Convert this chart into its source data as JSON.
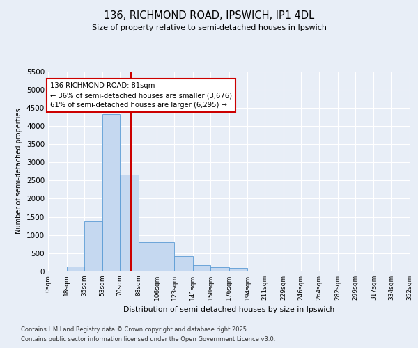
{
  "title_line1": "136, RICHMOND ROAD, IPSWICH, IP1 4DL",
  "title_line2": "Size of property relative to semi-detached houses in Ipswich",
  "xlabel": "Distribution of semi-detached houses by size in Ipswich",
  "ylabel": "Number of semi-detached properties",
  "bins": [
    0,
    18,
    35,
    53,
    70,
    88,
    106,
    123,
    141,
    158,
    176,
    194,
    211,
    229,
    246,
    264,
    282,
    299,
    317,
    334,
    352
  ],
  "bin_labels": [
    "0sqm",
    "18sqm",
    "35sqm",
    "53sqm",
    "70sqm",
    "88sqm",
    "106sqm",
    "123sqm",
    "141sqm",
    "158sqm",
    "176sqm",
    "194sqm",
    "211sqm",
    "229sqm",
    "246sqm",
    "264sqm",
    "282sqm",
    "299sqm",
    "317sqm",
    "334sqm",
    "352sqm"
  ],
  "counts": [
    10,
    130,
    1370,
    4320,
    2660,
    800,
    800,
    420,
    170,
    120,
    90,
    0,
    0,
    0,
    0,
    0,
    0,
    0,
    0,
    0
  ],
  "bar_color": "#c5d8f0",
  "bar_edge_color": "#5b9bd5",
  "property_value": 81,
  "vline_color": "#cc0000",
  "annotation_text": "136 RICHMOND ROAD: 81sqm\n← 36% of semi-detached houses are smaller (3,676)\n61% of semi-detached houses are larger (6,295) →",
  "annotation_box_color": "#ffffff",
  "annotation_box_edge": "#cc0000",
  "ylim": [
    0,
    5500
  ],
  "yticks": [
    0,
    500,
    1000,
    1500,
    2000,
    2500,
    3000,
    3500,
    4000,
    4500,
    5000,
    5500
  ],
  "footer_line1": "Contains HM Land Registry data © Crown copyright and database right 2025.",
  "footer_line2": "Contains public sector information licensed under the Open Government Licence v3.0.",
  "background_color": "#e8eef7",
  "plot_background_color": "#e8eef7"
}
